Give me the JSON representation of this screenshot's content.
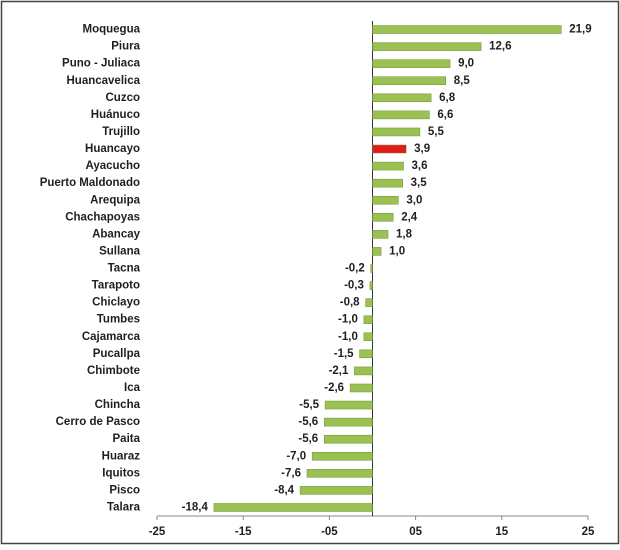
{
  "chart_data": {
    "type": "bar",
    "orientation": "horizontal",
    "categories": [
      "Moquegua",
      "Piura",
      "Puno - Juliaca",
      "Huancavelica",
      "Cuzco",
      "Huánuco",
      "Trujillo",
      "Huancayo",
      "Ayacucho",
      "Puerto Maldonado",
      "Arequipa",
      "Chachapoyas",
      "Abancay",
      "Sullana",
      "Tacna",
      "Tarapoto",
      "Chiclayo",
      "Tumbes",
      "Cajamarca",
      "Pucallpa",
      "Chimbote",
      "Ica",
      "Chincha",
      "Cerro de Pasco",
      "Paita",
      "Huaraz",
      "Iquitos",
      "Pisco",
      "Talara"
    ],
    "values": [
      21.9,
      12.6,
      9.0,
      8.5,
      6.8,
      6.6,
      5.5,
      3.9,
      3.6,
      3.5,
      3.0,
      2.4,
      1.8,
      1.0,
      -0.2,
      -0.3,
      -0.8,
      -1.0,
      -1.0,
      -1.5,
      -2.1,
      -2.6,
      -5.5,
      -5.6,
      -5.6,
      -7.0,
      -7.6,
      -8.4,
      -18.4
    ],
    "value_labels": [
      "21,9",
      "12,6",
      "9,0",
      "8,5",
      "6,8",
      "6,6",
      "5,5",
      "3,9",
      "3,6",
      "3,5",
      "3,0",
      "2,4",
      "1,8",
      "1,0",
      "-0,2",
      "-0,3",
      "-0,8",
      "-1,0",
      "-1,0",
      "-1,5",
      "-2,1",
      "-2,6",
      "-5,5",
      "-5,6",
      "-5,6",
      "-7,0",
      "-7,6",
      "-8,4",
      "-18,4"
    ],
    "colors": [
      "#9bc152",
      "#9bc152",
      "#9bc152",
      "#9bc152",
      "#9bc152",
      "#9bc152",
      "#9bc152",
      "#e31a1c",
      "#9bc152",
      "#9bc152",
      "#9bc152",
      "#9bc152",
      "#9bc152",
      "#9bc152",
      "#9bc152",
      "#9bc152",
      "#9bc152",
      "#9bc152",
      "#9bc152",
      "#9bc152",
      "#9bc152",
      "#9bc152",
      "#9bc152",
      "#9bc152",
      "#9bc152",
      "#9bc152",
      "#9bc152",
      "#9bc152",
      "#9bc152"
    ],
    "xlim": [
      -25,
      25
    ],
    "xticks": [
      -25,
      -15,
      {
        "value": -5,
        "label": "-05"
      },
      {
        "value": 5,
        "label": "05"
      },
      15,
      25
    ],
    "grid": false
  }
}
